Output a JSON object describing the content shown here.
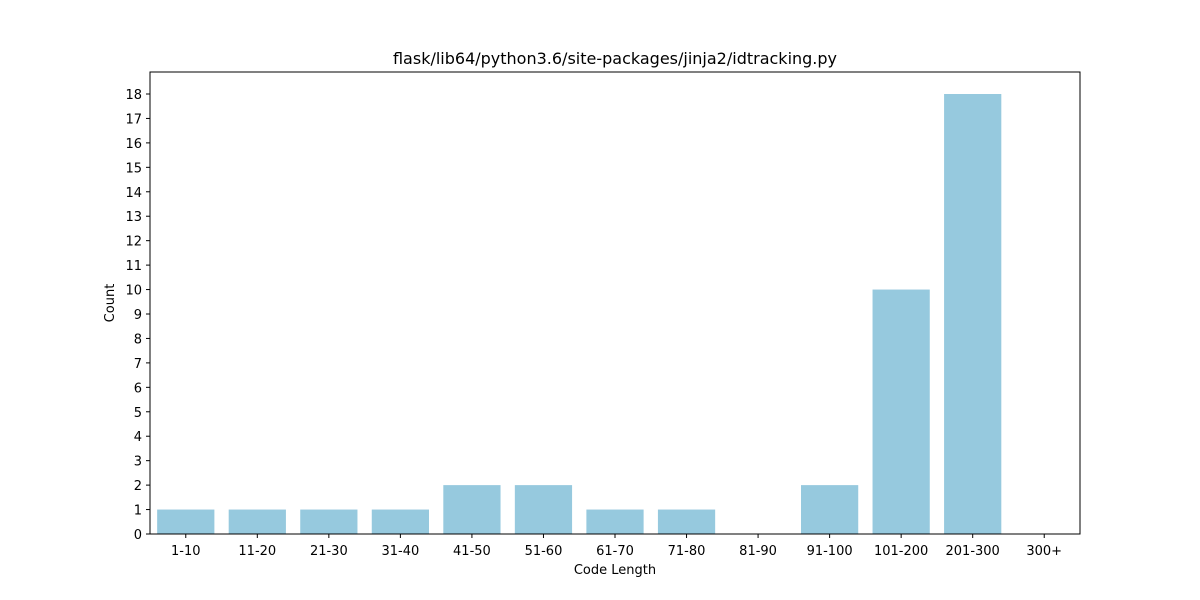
{
  "chart_data": {
    "type": "bar",
    "title": "flask/lib64/python3.6/site-packages/jinja2/idtracking.py",
    "xlabel": "Code Length",
    "ylabel": "Count",
    "categories": [
      "1-10",
      "11-20",
      "21-30",
      "31-40",
      "41-50",
      "51-60",
      "61-70",
      "71-80",
      "81-90",
      "91-100",
      "101-200",
      "201-300",
      "300+"
    ],
    "values": [
      1,
      1,
      1,
      1,
      2,
      2,
      1,
      1,
      0,
      2,
      10,
      18,
      0
    ],
    "ylim": [
      0,
      18.9
    ],
    "yticks": [
      0,
      1,
      2,
      3,
      4,
      5,
      6,
      7,
      8,
      9,
      10,
      11,
      12,
      13,
      14,
      15,
      16,
      17,
      18
    ],
    "bar_color": "#96c9de",
    "grid": false,
    "legend": "none"
  }
}
